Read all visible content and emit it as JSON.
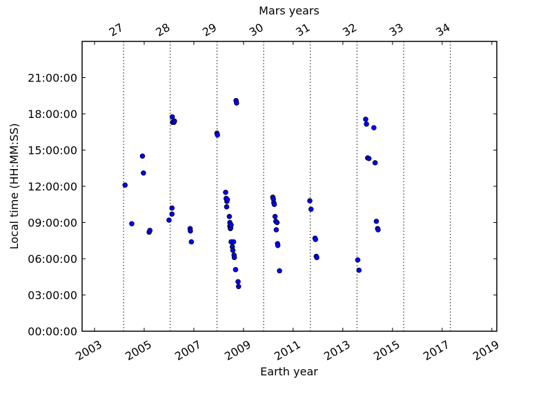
{
  "chart_data": {
    "type": "scatter",
    "xlabel": "Earth year",
    "ylabel": "Local time (HH:MM:SS)",
    "top_xlabel": "Mars years",
    "x_unit": "year",
    "y_unit": "hours",
    "xlim": [
      2002.5,
      2019.2
    ],
    "ylim": [
      0,
      24
    ],
    "x_ticks": [
      2003,
      2005,
      2007,
      2009,
      2011,
      2013,
      2015,
      2017,
      2019
    ],
    "x_tick_labels": [
      "2003",
      "2005",
      "2007",
      "2009",
      "2011",
      "2013",
      "2015",
      "2017",
      "2019"
    ],
    "y_ticks": [
      0,
      3,
      6,
      9,
      12,
      15,
      18,
      21
    ],
    "y_tick_labels": [
      "00:00:00",
      "03:00:00",
      "06:00:00",
      "09:00:00",
      "12:00:00",
      "15:00:00",
      "18:00:00",
      "21:00:00"
    ],
    "mars_year_boundaries": [
      2004.17,
      2006.05,
      2007.93,
      2009.81,
      2011.69,
      2013.57,
      2015.45,
      2017.33
    ],
    "mars_year_labels": [
      "27",
      "28",
      "29",
      "30",
      "31",
      "32",
      "33",
      "34"
    ],
    "grid": "dotted vertical lines at Mars year boundaries",
    "legend": "none",
    "marker_color": "#0000ff",
    "marker_edge_color": "#000000",
    "points": [
      [
        2004.23,
        12.1
      ],
      [
        2004.5,
        8.9
      ],
      [
        2004.93,
        14.5
      ],
      [
        2004.97,
        13.1
      ],
      [
        2005.2,
        8.2
      ],
      [
        2005.23,
        8.35
      ],
      [
        2006.0,
        9.2
      ],
      [
        2006.12,
        9.7
      ],
      [
        2006.12,
        10.2
      ],
      [
        2006.13,
        17.75
      ],
      [
        2006.14,
        17.3
      ],
      [
        2006.2,
        17.3
      ],
      [
        2006.22,
        17.4
      ],
      [
        2006.85,
        8.5
      ],
      [
        2006.86,
        8.3
      ],
      [
        2006.9,
        7.4
      ],
      [
        2007.93,
        16.4
      ],
      [
        2007.95,
        16.25
      ],
      [
        2008.28,
        11.5
      ],
      [
        2008.3,
        11.0
      ],
      [
        2008.32,
        10.3
      ],
      [
        2008.33,
        10.75
      ],
      [
        2008.35,
        10.9
      ],
      [
        2008.43,
        9.5
      ],
      [
        2008.45,
        9.0
      ],
      [
        2008.45,
        8.7
      ],
      [
        2008.47,
        8.5
      ],
      [
        2008.48,
        8.55
      ],
      [
        2008.5,
        8.8
      ],
      [
        2008.5,
        7.4
      ],
      [
        2008.55,
        7.0
      ],
      [
        2008.57,
        6.7
      ],
      [
        2008.6,
        7.4
      ],
      [
        2008.62,
        6.3
      ],
      [
        2008.63,
        6.1
      ],
      [
        2008.68,
        5.1
      ],
      [
        2008.7,
        19.1
      ],
      [
        2008.72,
        18.9
      ],
      [
        2008.78,
        4.1
      ],
      [
        2008.8,
        3.7
      ],
      [
        2010.18,
        11.1
      ],
      [
        2010.2,
        10.95
      ],
      [
        2010.22,
        10.65
      ],
      [
        2010.24,
        10.5
      ],
      [
        2010.27,
        9.5
      ],
      [
        2010.3,
        9.1
      ],
      [
        2010.32,
        8.4
      ],
      [
        2010.35,
        9.0
      ],
      [
        2010.37,
        7.25
      ],
      [
        2010.38,
        7.1
      ],
      [
        2010.45,
        5.0
      ],
      [
        2011.67,
        10.8
      ],
      [
        2011.72,
        10.1
      ],
      [
        2011.88,
        7.7
      ],
      [
        2011.9,
        7.6
      ],
      [
        2011.93,
        6.2
      ],
      [
        2011.95,
        6.1
      ],
      [
        2013.6,
        5.9
      ],
      [
        2013.65,
        5.05
      ],
      [
        2013.92,
        17.55
      ],
      [
        2013.95,
        17.15
      ],
      [
        2014.0,
        14.35
      ],
      [
        2014.05,
        14.3
      ],
      [
        2014.25,
        16.85
      ],
      [
        2014.3,
        13.95
      ],
      [
        2014.35,
        9.1
      ],
      [
        2014.4,
        8.5
      ],
      [
        2014.42,
        8.4
      ]
    ]
  }
}
